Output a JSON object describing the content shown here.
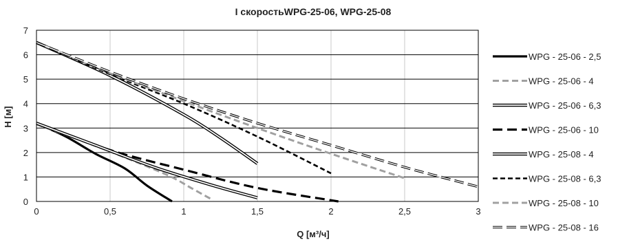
{
  "chart_data": {
    "type": "line",
    "title": "I скоростьWPG-25-06, WPG-25-08",
    "xlabel": "Q [м³/ч]",
    "ylabel": "H [м]",
    "xlim": [
      0,
      3
    ],
    "ylim": [
      0,
      7
    ],
    "x_ticks": [
      "0",
      "0,5",
      "1",
      "1,5",
      "2",
      "2,5",
      "3"
    ],
    "y_ticks": [
      "0",
      "1",
      "2",
      "3",
      "4",
      "5",
      "6",
      "7"
    ],
    "grid": "both",
    "legend_position": "right",
    "series": [
      {
        "name": "WPG - 25-06 - 2,5",
        "style": "thick-solid",
        "color": "#000000",
        "points": [
          [
            0,
            3.2
          ],
          [
            0.2,
            2.65
          ],
          [
            0.4,
            1.95
          ],
          [
            0.6,
            1.35
          ],
          [
            0.75,
            0.65
          ],
          [
            0.92,
            0.0
          ]
        ]
      },
      {
        "name": "WPG - 25-06 - 4",
        "style": "gray-dashed",
        "color": "#a0a0a0",
        "points": [
          [
            0,
            3.15
          ],
          [
            0.3,
            2.5
          ],
          [
            0.6,
            1.8
          ],
          [
            0.9,
            1.05
          ],
          [
            1.05,
            0.55
          ],
          [
            1.2,
            0.05
          ]
        ]
      },
      {
        "name": "WPG - 25-06 - 6,3",
        "style": "double",
        "color": "#000000",
        "points": [
          [
            0,
            6.5
          ],
          [
            0.5,
            5.15
          ],
          [
            1.0,
            3.55
          ],
          [
            1.25,
            2.6
          ],
          [
            1.5,
            1.55
          ]
        ]
      },
      {
        "name": "WPG - 25-06 - 10",
        "style": "thick-dashed",
        "color": "#000000",
        "points": [
          [
            0,
            3.2
          ],
          [
            0.5,
            2.1
          ],
          [
            1.0,
            1.3
          ],
          [
            1.5,
            0.55
          ],
          [
            2.05,
            0.0
          ]
        ]
      },
      {
        "name": "WPG - 25-08 - 4",
        "style": "double",
        "color": "#000000",
        "points": [
          [
            0,
            3.2
          ],
          [
            0.4,
            2.3
          ],
          [
            0.8,
            1.4
          ],
          [
            1.2,
            0.65
          ],
          [
            1.5,
            0.15
          ]
        ]
      },
      {
        "name": "WPG - 25-08 - 6,3",
        "style": "dashed",
        "color": "#000000",
        "points": [
          [
            0,
            6.5
          ],
          [
            0.5,
            5.2
          ],
          [
            1.0,
            4.0
          ],
          [
            1.5,
            2.65
          ],
          [
            2.0,
            1.15
          ]
        ]
      },
      {
        "name": "WPG - 25-08 - 10",
        "style": "gray-dashed",
        "color": "#a0a0a0",
        "points": [
          [
            0,
            6.5
          ],
          [
            0.5,
            5.25
          ],
          [
            1.0,
            4.1
          ],
          [
            1.5,
            3.0
          ],
          [
            2.0,
            1.95
          ],
          [
            2.5,
            0.95
          ]
        ]
      },
      {
        "name": "WPG - 25-08 - 16",
        "style": "dash-double",
        "color": "#000000",
        "points": [
          [
            0,
            6.5
          ],
          [
            0.5,
            5.3
          ],
          [
            1.0,
            4.2
          ],
          [
            1.5,
            3.2
          ],
          [
            2.0,
            2.3
          ],
          [
            2.5,
            1.4
          ],
          [
            3.0,
            0.6
          ]
        ]
      }
    ]
  }
}
